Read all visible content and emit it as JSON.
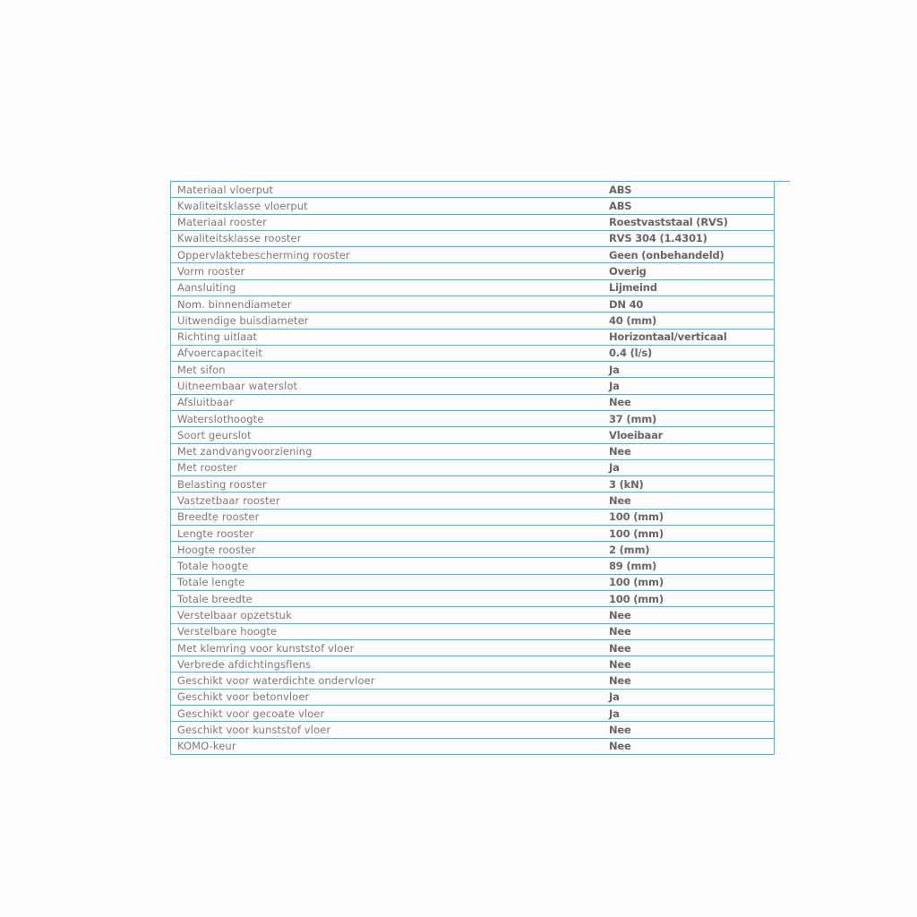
{
  "border_color": "#4db3dc",
  "specs": [
    {
      "label": "Materiaal vloerput",
      "value": "ABS"
    },
    {
      "label": "Kwaliteitsklasse vloerput",
      "value": "ABS"
    },
    {
      "label": "Materiaal rooster",
      "value": "Roestvaststaal (RVS)"
    },
    {
      "label": "Kwaliteitsklasse rooster",
      "value": "RVS 304 (1.4301)"
    },
    {
      "label": "Oppervlaktebescherming rooster",
      "value": "Geen (onbehandeld)"
    },
    {
      "label": "Vorm rooster",
      "value": "Overig"
    },
    {
      "label": "Aansluiting",
      "value": "Lijmeind"
    },
    {
      "label": "Nom. binnendiameter",
      "value": "DN 40"
    },
    {
      "label": "Uitwendige buisdiameter",
      "value": "40 (mm)"
    },
    {
      "label": "Richting uitlaat",
      "value": "Horizontaal/verticaal"
    },
    {
      "label": "Afvoercapaciteit",
      "value": "0.4 (l/s)"
    },
    {
      "label": "Met sifon",
      "value": "Ja"
    },
    {
      "label": "Uitneembaar waterslot",
      "value": "Ja"
    },
    {
      "label": "Afsluitbaar",
      "value": "Nee"
    },
    {
      "label": "Waterslothoogte",
      "value": "37 (mm)"
    },
    {
      "label": "Soort geurslot",
      "value": "Vloeibaar"
    },
    {
      "label": "Met zandvangvoorziening",
      "value": "Nee"
    },
    {
      "label": "Met rooster",
      "value": "Ja"
    },
    {
      "label": "Belasting rooster",
      "value": "3 (kN)"
    },
    {
      "label": "Vastzetbaar rooster",
      "value": "Nee"
    },
    {
      "label": "Breedte rooster",
      "value": "100 (mm)"
    },
    {
      "label": "Lengte rooster",
      "value": "100 (mm)"
    },
    {
      "label": "Hoogte rooster",
      "value": "2 (mm)"
    },
    {
      "label": "Totale hoogte",
      "value": "89 (mm)"
    },
    {
      "label": "Totale lengte",
      "value": "100 (mm)"
    },
    {
      "label": "Totale breedte",
      "value": "100 (mm)"
    },
    {
      "label": "Verstelbaar opzetstuk",
      "value": "Nee"
    },
    {
      "label": "Verstelbare hoogte",
      "value": "Nee"
    },
    {
      "label": "Met klemring voor kunststof vloer",
      "value": "Nee"
    },
    {
      "label": "Verbrede afdichtingsflens",
      "value": "Nee"
    },
    {
      "label": "Geschikt voor waterdichte ondervloer",
      "value": "Nee"
    },
    {
      "label": "Geschikt voor betonvloer",
      "value": "Ja"
    },
    {
      "label": "Geschikt voor gecoate vloer",
      "value": "Ja"
    },
    {
      "label": "Geschikt voor kunststof vloer",
      "value": "Nee"
    },
    {
      "label": "KOMO-keur",
      "value": "Nee"
    }
  ]
}
